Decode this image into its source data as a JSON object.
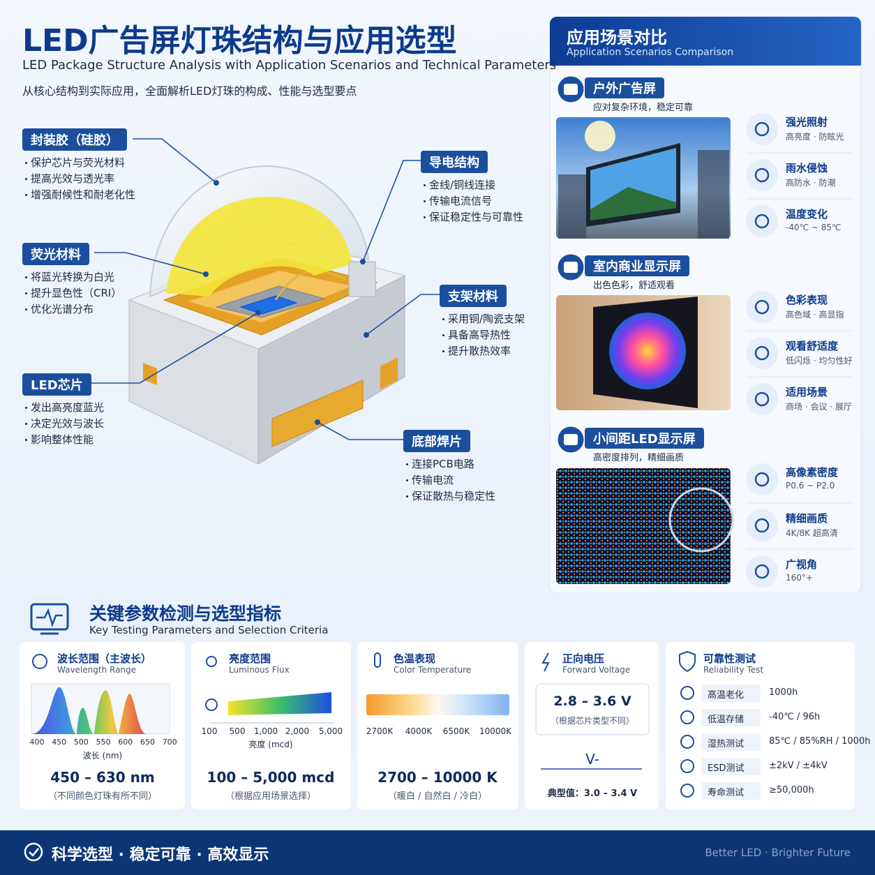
{
  "header": {
    "title": "LED广告屏灯珠结构与应用选型",
    "subtitle_en": "LED Package Structure Analysis with Application Scenarios and Technical Parameters",
    "subtitle_cn": "从核心结构到实际应用，全面解析LED灯珠的构成、性能与选型要点"
  },
  "callouts": [
    {
      "title": "封装胶（硅胶）",
      "items": [
        "保护芯片与荧光材料",
        "提高光效与透光率",
        "增强耐候性和耐老化性"
      ]
    },
    {
      "title": "荧光材料",
      "items": [
        "将蓝光转换为白光",
        "提升显色性（CRI）",
        "优化光谱分布"
      ]
    },
    {
      "title": "LED芯片",
      "items": [
        "发出高亮度蓝光",
        "决定光效与波长",
        "影响整体性能"
      ]
    },
    {
      "title": "导电结构",
      "items": [
        "金线/铜线连接",
        "传输电流信号",
        "保证稳定性与可靠性"
      ]
    },
    {
      "title": "支架材料",
      "items": [
        "采用铜/陶瓷支架",
        "具备高导热性",
        "提升散热效率"
      ]
    },
    {
      "title": "底部焊片",
      "items": [
        "连接PCB电路",
        "传输电流",
        "保证散热与稳定性"
      ]
    }
  ],
  "scenarios": {
    "title": "应用场景对比",
    "title_en": "Application Scenarios Comparison",
    "sections": [
      {
        "title": "户外广告屏",
        "subtitle": "应对复杂环境，稳定可靠",
        "features": [
          {
            "title": "强光照射",
            "desc": "高亮度 · 防眩光"
          },
          {
            "title": "雨水侵蚀",
            "desc": "高防水 · 防潮"
          },
          {
            "title": "温度变化",
            "desc": "-40℃ ~ 85℃"
          }
        ]
      },
      {
        "title": "室内商业显示屏",
        "subtitle": "出色色彩，舒适观看",
        "features": [
          {
            "title": "色彩表现",
            "desc": "高色域 · 高显指"
          },
          {
            "title": "观看舒适度",
            "desc": "低闪烁 · 均匀性好"
          },
          {
            "title": "适用场景",
            "desc": "商场 · 会议 · 展厅"
          }
        ]
      },
      {
        "title": "小间距LED显示屏",
        "subtitle": "高密度排列，精细画质",
        "features": [
          {
            "title": "高像素密度",
            "desc": "P0.6 ~ P2.0"
          },
          {
            "title": "精细画质",
            "desc": "4K/8K 超高清"
          },
          {
            "title": "广视角",
            "desc": "160°+"
          }
        ]
      }
    ]
  },
  "parameters": {
    "title": "关键参数检测与选型指标",
    "title_en": "Key Testing Parameters and Selection Criteria",
    "wavelength": {
      "title": "波长范围（主波长）",
      "title_en": "Wavelength Range",
      "ticks": [
        400,
        450,
        500,
        550,
        600,
        650,
        700
      ],
      "axis_label": "波长 (nm)",
      "value": "450 – 630 nm",
      "note": "（不同颜色灯珠有所不同）"
    },
    "brightness": {
      "title": "亮度范围",
      "title_en": "Luminous Flux",
      "ticks": [
        "100",
        "500",
        "1,000",
        "2,000",
        "5,000"
      ],
      "axis_label": "亮度 (mcd)",
      "value": "100 – 5,000 mcd",
      "note": "（根据应用场景选择）"
    },
    "color_temperature": {
      "title": "色温表现",
      "title_en": "Color Temperature",
      "ticks": [
        "2700K",
        "4000K",
        "6500K",
        "10000K"
      ],
      "value": "2700 – 10000 K",
      "note": "（暖白 / 自然白 / 冷白）"
    },
    "voltage": {
      "title": "正向电压",
      "title_en": "Forward Voltage",
      "value": "2.8 – 3.6 V",
      "note": "（根据芯片类型不同）",
      "symbol": "V-",
      "typical": "典型值：3.0 – 3.4 V"
    },
    "reliability": {
      "title": "可靠性测试",
      "title_en": "Reliability Test",
      "tests": [
        {
          "name": "高温老化",
          "value": "1000h"
        },
        {
          "name": "低温存储",
          "value": "-40℃ / 96h"
        },
        {
          "name": "湿热测试",
          "value": "85℃ / 85%RH / 1000h"
        },
        {
          "name": "ESD测试",
          "value": "±2kV / ±4kV"
        },
        {
          "name": "寿命测试",
          "value": "≥50,000h"
        }
      ]
    }
  },
  "footer": {
    "slogan": "科学选型 · 稳定可靠 · 高效显示",
    "tagline": "Better LED · Brighter Future"
  }
}
